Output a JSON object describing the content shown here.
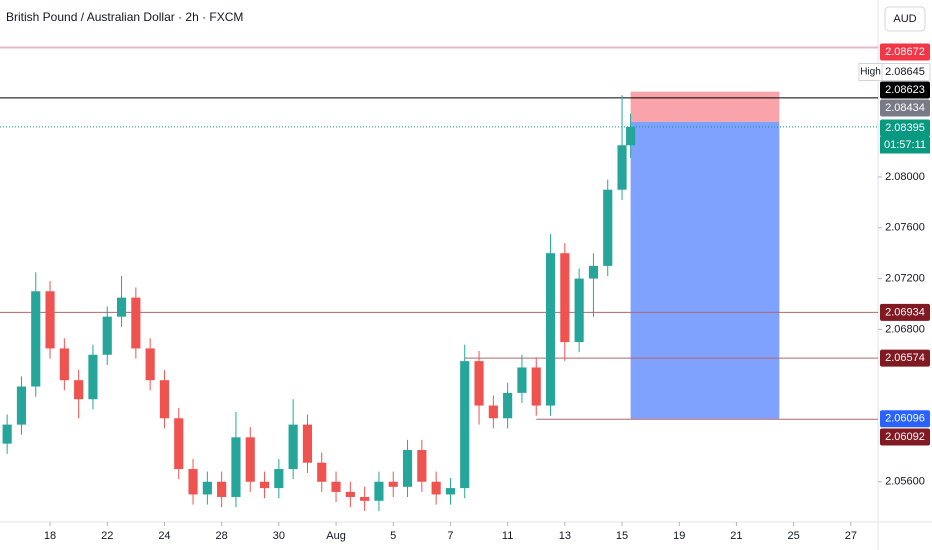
{
  "chart_data": {
    "type": "candlestick",
    "title": "British Pound / Australian Dollar · 2h · FXCM",
    "currency": "AUD",
    "x": [
      -1.5,
      -1.0,
      -0.5,
      0,
      0.5,
      1.0,
      1.5,
      2.0,
      2.5,
      3.0,
      3.5,
      4.0,
      4.5,
      5.0,
      5.5,
      6.0,
      6.5,
      7.0,
      7.5,
      8.0,
      8.5,
      9.0,
      9.5,
      10.0,
      10.5,
      11.0,
      11.5,
      12.0,
      12.5,
      13.0,
      13.5,
      14.0,
      14.5,
      15.0,
      15.5,
      16.0,
      16.5,
      17.0,
      17.5,
      18.0,
      18.5,
      19.0,
      19.5,
      20.0,
      20.3
    ],
    "open": [
      2.059,
      2.0605,
      2.0635,
      2.071,
      2.0665,
      2.064,
      2.0625,
      2.066,
      2.069,
      2.0705,
      2.0665,
      2.064,
      2.061,
      2.057,
      2.055,
      2.056,
      2.0548,
      2.0595,
      2.056,
      2.0555,
      2.057,
      2.0605,
      2.0575,
      2.056,
      2.0552,
      2.0548,
      2.0545,
      2.056,
      2.0556,
      2.0585,
      2.056,
      2.055,
      2.0555,
      2.0655,
      2.062,
      2.061,
      2.063,
      2.065,
      2.062,
      2.074,
      2.067,
      2.072,
      2.073,
      2.079,
      2.0825
    ],
    "high": [
      2.0613,
      2.0643,
      2.0725,
      2.0718,
      2.0673,
      2.0648,
      2.0668,
      2.0698,
      2.0722,
      2.0713,
      2.0673,
      2.0648,
      2.0618,
      2.0578,
      2.0568,
      2.0568,
      2.0615,
      2.0603,
      2.0568,
      2.0578,
      2.0625,
      2.0613,
      2.0583,
      2.0568,
      2.056,
      2.0556,
      2.0568,
      2.0568,
      2.0593,
      2.0593,
      2.0568,
      2.0563,
      2.0668,
      2.0663,
      2.0628,
      2.0638,
      2.066,
      2.0658,
      2.0755,
      2.0748,
      2.0728,
      2.074,
      2.0798,
      2.08645,
      2.085
    ],
    "low": [
      2.0582,
      2.0597,
      2.0627,
      2.0657,
      2.0632,
      2.061,
      2.0617,
      2.0652,
      2.0682,
      2.0657,
      2.0632,
      2.0602,
      2.0562,
      2.0542,
      2.0542,
      2.054,
      2.054,
      2.0552,
      2.0547,
      2.0547,
      2.0562,
      2.0567,
      2.0552,
      2.0544,
      2.054,
      2.0537,
      2.0537,
      2.0548,
      2.0548,
      2.0552,
      2.0542,
      2.0542,
      2.0547,
      2.0605,
      2.0602,
      2.0602,
      2.0622,
      2.0612,
      2.0612,
      2.0655,
      2.0662,
      2.069,
      2.0722,
      2.0782,
      2.0815
    ],
    "close": [
      2.0605,
      2.0635,
      2.071,
      2.0665,
      2.064,
      2.0625,
      2.066,
      2.069,
      2.0705,
      2.0665,
      2.064,
      2.061,
      2.057,
      2.055,
      2.056,
      2.0548,
      2.0595,
      2.056,
      2.0555,
      2.057,
      2.0605,
      2.0575,
      2.056,
      2.0552,
      2.0548,
      2.0545,
      2.056,
      2.0556,
      2.0585,
      2.056,
      2.055,
      2.0555,
      2.0655,
      2.062,
      2.061,
      2.063,
      2.065,
      2.062,
      2.074,
      2.067,
      2.072,
      2.073,
      2.079,
      2.0825,
      2.08395
    ],
    "up_color": "#26a69a",
    "down_color": "#ef5350",
    "xlim": [
      -1.75,
      28.95
    ],
    "ylim": [
      2.05283,
      2.09394
    ],
    "xticks": [
      {
        "value": 0,
        "label": "18"
      },
      {
        "value": 2,
        "label": "22"
      },
      {
        "value": 4,
        "label": "24"
      },
      {
        "value": 6,
        "label": "28"
      },
      {
        "value": 8,
        "label": "30"
      },
      {
        "value": 10,
        "label": "Aug"
      },
      {
        "value": 12,
        "label": "5"
      },
      {
        "value": 14,
        "label": "7"
      },
      {
        "value": 16,
        "label": "11"
      },
      {
        "value": 18,
        "label": "13"
      },
      {
        "value": 20,
        "label": "15"
      },
      {
        "value": 22,
        "label": "19"
      },
      {
        "value": 24,
        "label": "21"
      },
      {
        "value": 26,
        "label": "25"
      },
      {
        "value": 28,
        "label": "27"
      }
    ],
    "yticks": [
      {
        "value": 2.08,
        "label": "2.08000"
      },
      {
        "value": 2.076,
        "label": "2.07600"
      },
      {
        "value": 2.072,
        "label": "2.07200"
      },
      {
        "value": 2.068,
        "label": "2.06800"
      },
      {
        "value": 2.056,
        "label": "2.05600"
      }
    ],
    "alert_line": 2.0902,
    "high_label": "High",
    "countdown": "01:57:11",
    "levels": [
      {
        "value": 2.08672,
        "color": "#f23645"
      },
      {
        "value": 2.08645,
        "color": "#ffffff"
      },
      {
        "value": 2.08623,
        "color": "#000000",
        "from": -1.75
      },
      {
        "value": 2.08434,
        "color": "#787b86"
      },
      {
        "value": 2.08395,
        "color": "#089981",
        "from": -1.75
      },
      {
        "value": 2.06934,
        "color": "#801922",
        "from": -1.75
      },
      {
        "value": 2.06574,
        "color": "#801922",
        "from": 14.5
      },
      {
        "value": 2.06096,
        "color": "#2962ff"
      },
      {
        "value": 2.06092,
        "color": "#801922",
        "from": 17.0
      }
    ],
    "position": {
      "entry": 2.08434,
      "stop": 2.08672,
      "target": 2.06096,
      "start": 20.3,
      "end": 25.5
    }
  }
}
